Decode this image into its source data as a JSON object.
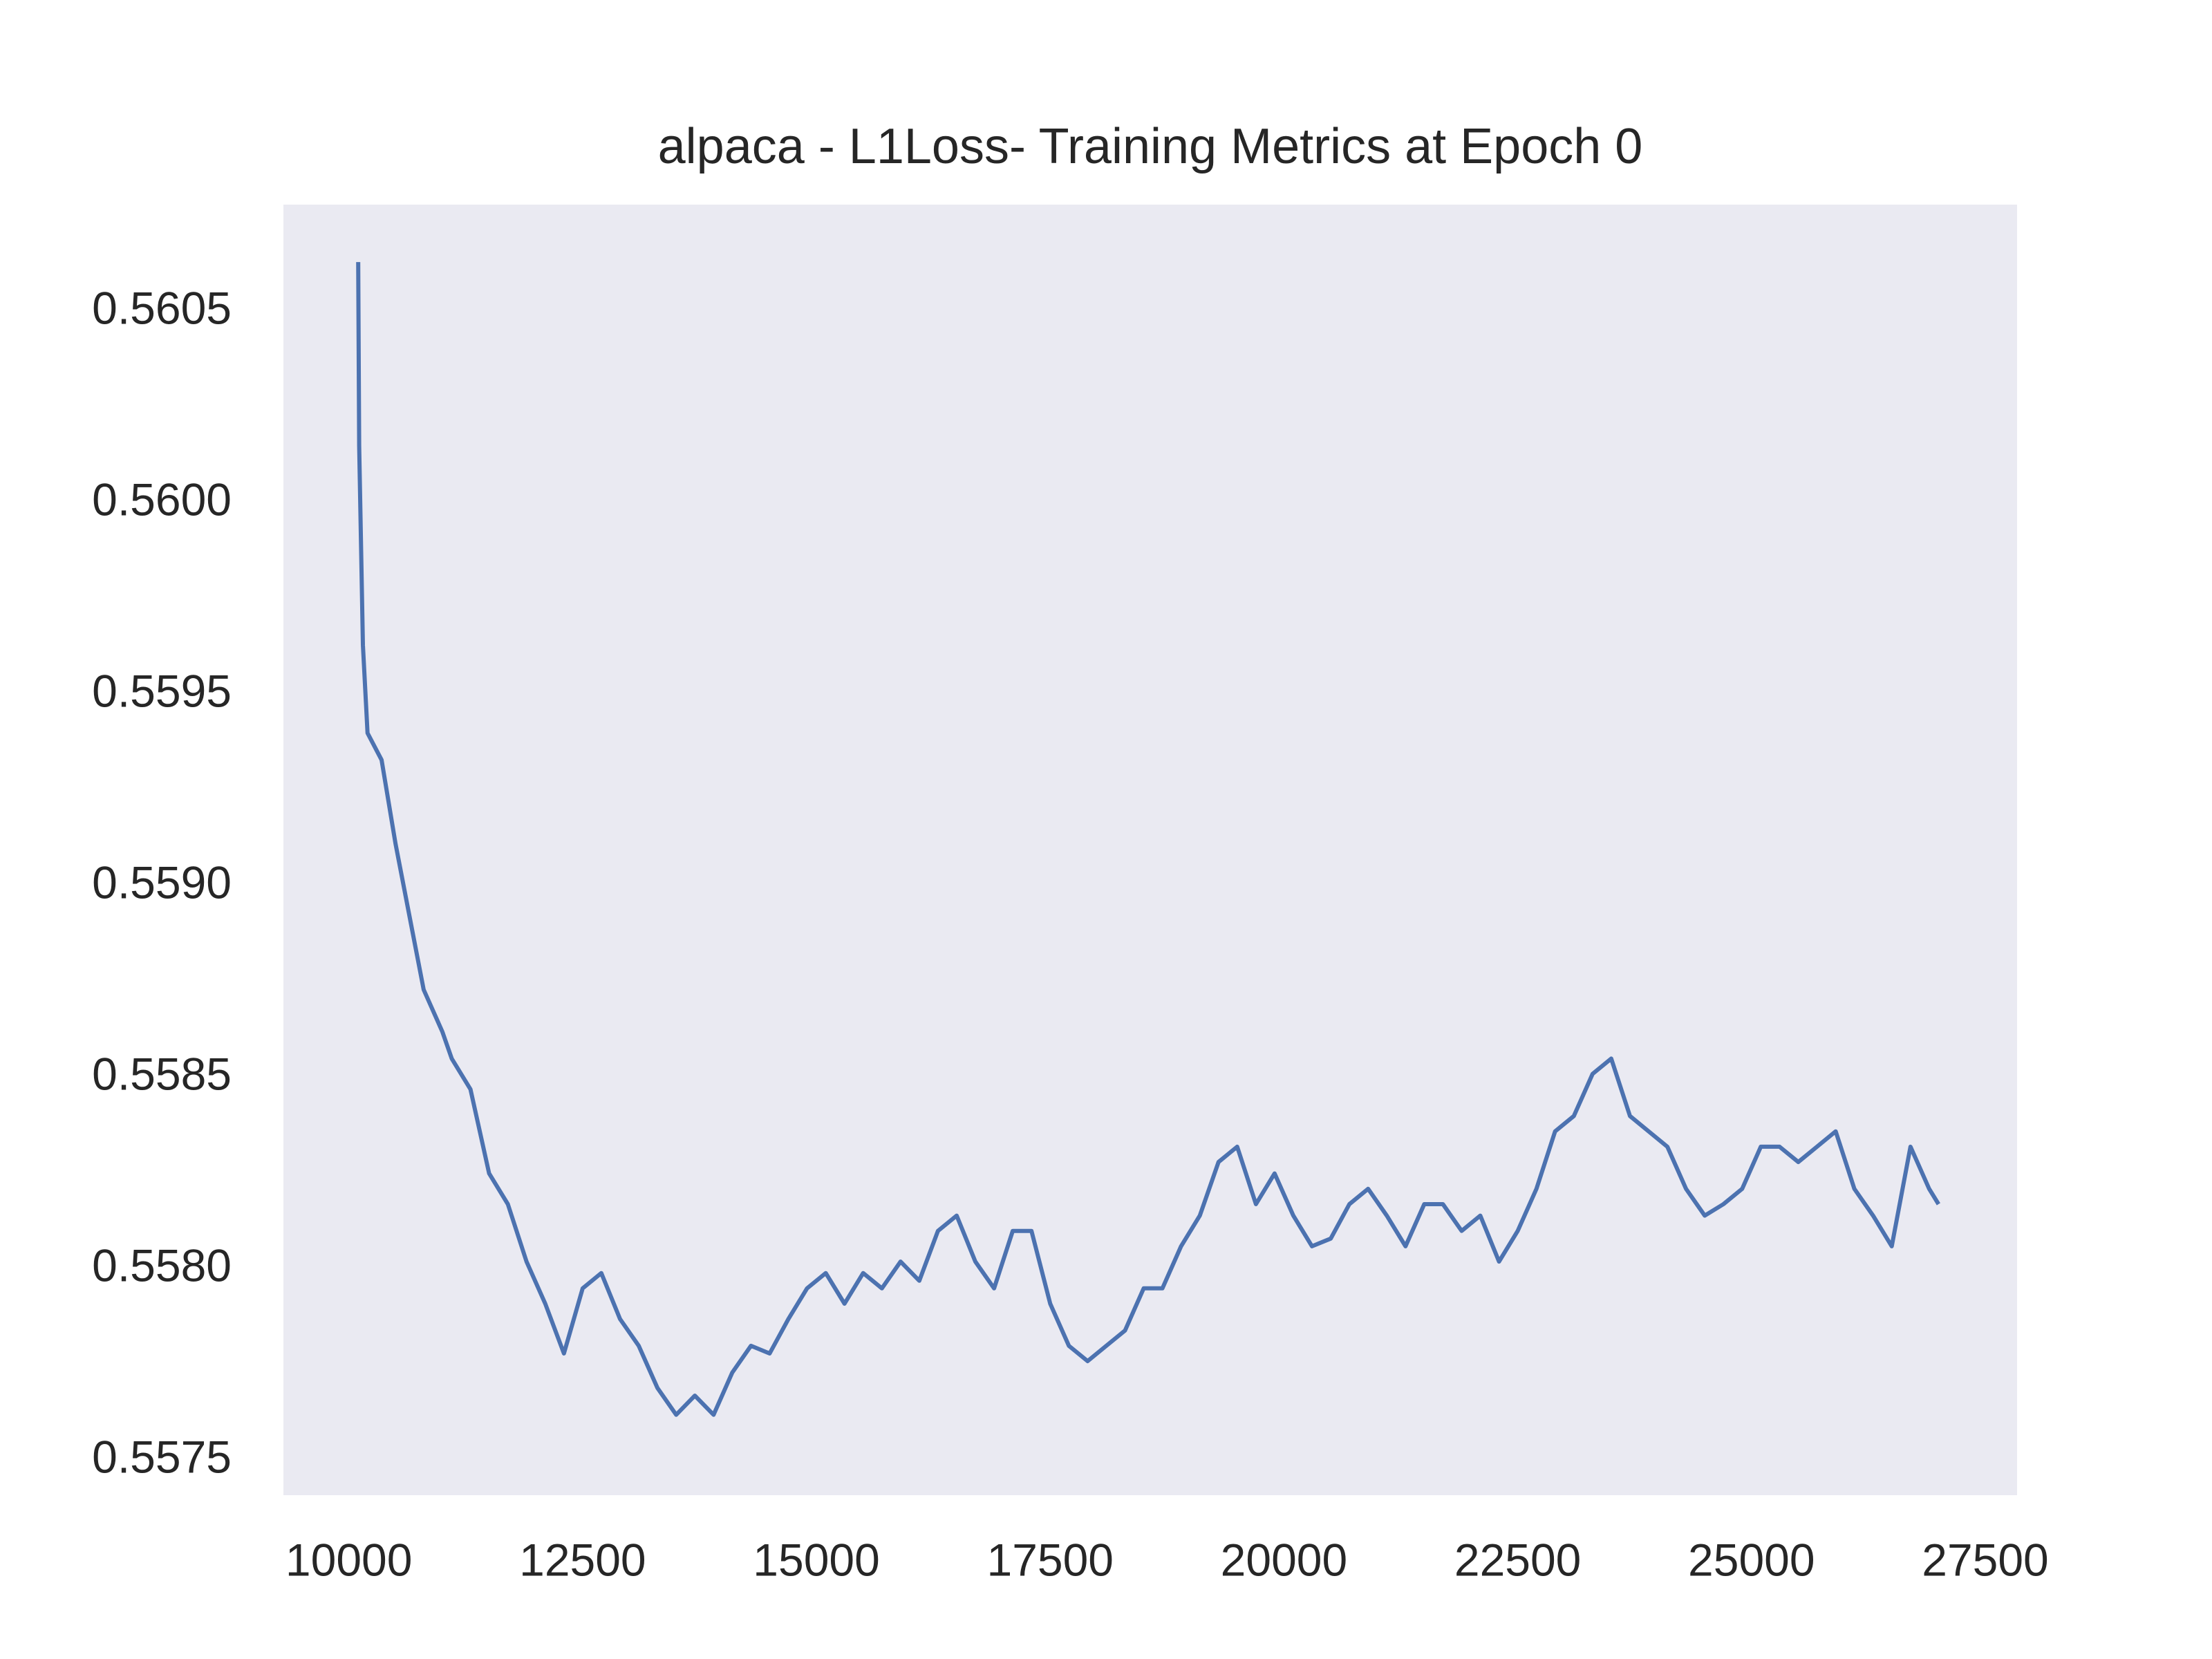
{
  "chart_data": {
    "type": "line",
    "title": "alpaca - L1Loss- Training Metrics at Epoch 0",
    "x": [
      10100,
      10110,
      10150,
      10200,
      10350,
      10500,
      10650,
      10800,
      11000,
      11100,
      11300,
      11500,
      11700,
      11900,
      12100,
      12300,
      12500,
      12700,
      12900,
      13100,
      13300,
      13500,
      13700,
      13900,
      14100,
      14300,
      14500,
      14700,
      14900,
      15100,
      15300,
      15500,
      15700,
      15900,
      16100,
      16300,
      16500,
      16700,
      16900,
      17100,
      17300,
      17500,
      17700,
      17900,
      18100,
      18300,
      18500,
      18700,
      18900,
      19100,
      19300,
      19500,
      19700,
      19900,
      20100,
      20300,
      20500,
      20700,
      20900,
      21100,
      21300,
      21500,
      21700,
      21900,
      22100,
      22300,
      22500,
      22700,
      22900,
      23100,
      23300,
      23500,
      23700,
      23900,
      24100,
      24300,
      24500,
      24700,
      24900,
      25100,
      25300,
      25500,
      25700,
      25900,
      26100,
      26300,
      26500,
      26700,
      26900,
      27000
    ],
    "series": [
      {
        "color": "#4c72b0",
        "values": [
          0.56063,
          0.56015,
          0.55963,
          0.5594,
          0.55933,
          0.55911,
          0.55892,
          0.55873,
          0.55862,
          0.55855,
          0.55847,
          0.55825,
          0.55817,
          0.55802,
          0.55791,
          0.55778,
          0.55795,
          0.55799,
          0.55787,
          0.5578,
          0.55769,
          0.55762,
          0.55767,
          0.55762,
          0.55773,
          0.5578,
          0.55778,
          0.55787,
          0.55795,
          0.55799,
          0.55791,
          0.55799,
          0.55795,
          0.55802,
          0.55797,
          0.5581,
          0.55814,
          0.55802,
          0.55795,
          0.5581,
          0.5581,
          0.55791,
          0.5578,
          0.55776,
          0.5578,
          0.55784,
          0.55795,
          0.55795,
          0.55806,
          0.55814,
          0.55828,
          0.55832,
          0.55817,
          0.55825,
          0.55814,
          0.55806,
          0.55808,
          0.55817,
          0.55821,
          0.55814,
          0.55806,
          0.55817,
          0.55817,
          0.5581,
          0.55814,
          0.55802,
          0.5581,
          0.55821,
          0.55836,
          0.5584,
          0.55851,
          0.55855,
          0.5584,
          0.55836,
          0.55832,
          0.55821,
          0.55814,
          0.55817,
          0.55821,
          0.55832,
          0.55832,
          0.55828,
          0.55832,
          0.55836,
          0.55821,
          0.55814,
          0.55806,
          0.55832,
          0.55821,
          0.55817
        ]
      }
    ],
    "xlim": [
      9300,
      27840
    ],
    "xticks": [
      10000,
      12500,
      15000,
      17500,
      20000,
      22500,
      25000,
      27500
    ],
    "ylim": [
      0.55741,
      0.56078
    ],
    "yticks": [
      0.5575,
      {
        "value": 0.558,
        "label": "0.5580"
      },
      0.5585,
      {
        "value": 0.559,
        "label": "0.5590"
      },
      0.5595,
      {
        "value": 0.56,
        "label": "0.5600"
      },
      0.5605
    ],
    "grid": false,
    "background": "#eaeaf2"
  }
}
